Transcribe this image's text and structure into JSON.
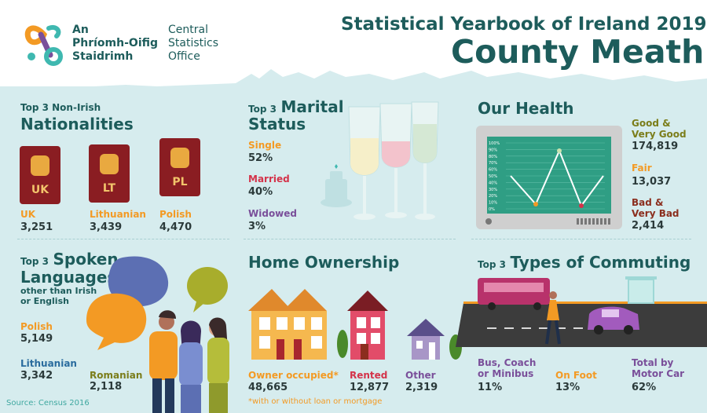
{
  "header": {
    "org_irish_1": "An",
    "org_irish_2": "Phríomh-Oifig",
    "org_irish_3": "Staidrimh",
    "org_english_1": "Central",
    "org_english_2": "Statistics",
    "org_english_3": "Office",
    "title_line1": "Statistical Yearbook of Ireland 2019",
    "title_line2": "County Meath"
  },
  "nationalities": {
    "prefix": "Top 3 Non-Irish",
    "title": "Nationalities",
    "items": [
      {
        "code": "UK",
        "label": "UK",
        "value": "3,251"
      },
      {
        "code": "LT",
        "label": "Lithuanian",
        "value": "3,439"
      },
      {
        "code": "PL",
        "label": "Polish",
        "value": "4,470"
      }
    ]
  },
  "marital": {
    "prefix": "Top 3",
    "title_1": "Marital",
    "title_2": "Status",
    "items": [
      {
        "label": "Single",
        "value": "52%"
      },
      {
        "label": "Married",
        "value": "40%"
      },
      {
        "label": "Widowed",
        "value": "3%"
      }
    ]
  },
  "health": {
    "title": "Our Health",
    "items": [
      {
        "label_1": "Good &",
        "label_2": "Very Good",
        "value": "174,819"
      },
      {
        "label_1": "Fair",
        "label_2": "",
        "value": "13,037"
      },
      {
        "label_1": "Bad &",
        "label_2": "Very Bad",
        "value": "2,414"
      }
    ],
    "axis_ticks": [
      "100%",
      "90%",
      "80%",
      "70%",
      "60%",
      "50%",
      "40%",
      "30%",
      "20%",
      "10%",
      "0%"
    ]
  },
  "languages": {
    "prefix": "Top 3",
    "title_1": "Spoken",
    "title_2": "Languages",
    "sub_1": "other than Irish",
    "sub_2": "or English",
    "items": [
      {
        "label": "Polish",
        "value": "5,149"
      },
      {
        "label": "Lithuanian",
        "value": "3,342"
      },
      {
        "label": "Romanian",
        "value": "2,118"
      }
    ]
  },
  "ownership": {
    "title": "Home Ownership",
    "items": [
      {
        "label": "Owner occupied*",
        "value": "48,665"
      },
      {
        "label": "Rented",
        "value": "12,877"
      },
      {
        "label": "Other",
        "value": "2,319"
      }
    ],
    "footnote": "*with or without loan or mortgage"
  },
  "commuting": {
    "prefix": "Top 3",
    "title": "Types of Commuting",
    "items": [
      {
        "label_1": "Bus, Coach",
        "label_2": "or Minibus",
        "value": "11%"
      },
      {
        "label_1": "On Foot",
        "label_2": "",
        "value": "13%"
      },
      {
        "label_1": "Total by",
        "label_2": "Motor Car",
        "value": "62%"
      }
    ]
  },
  "source": "Source: Census 2016",
  "colors": {
    "teal": "#1d5c5b",
    "background": "#d6ecee",
    "orange": "#f39a24",
    "red": "#d4334a",
    "purple": "#7a4f9a",
    "passport": "#8a1d22",
    "monitor_screen": "#2f9e84"
  }
}
